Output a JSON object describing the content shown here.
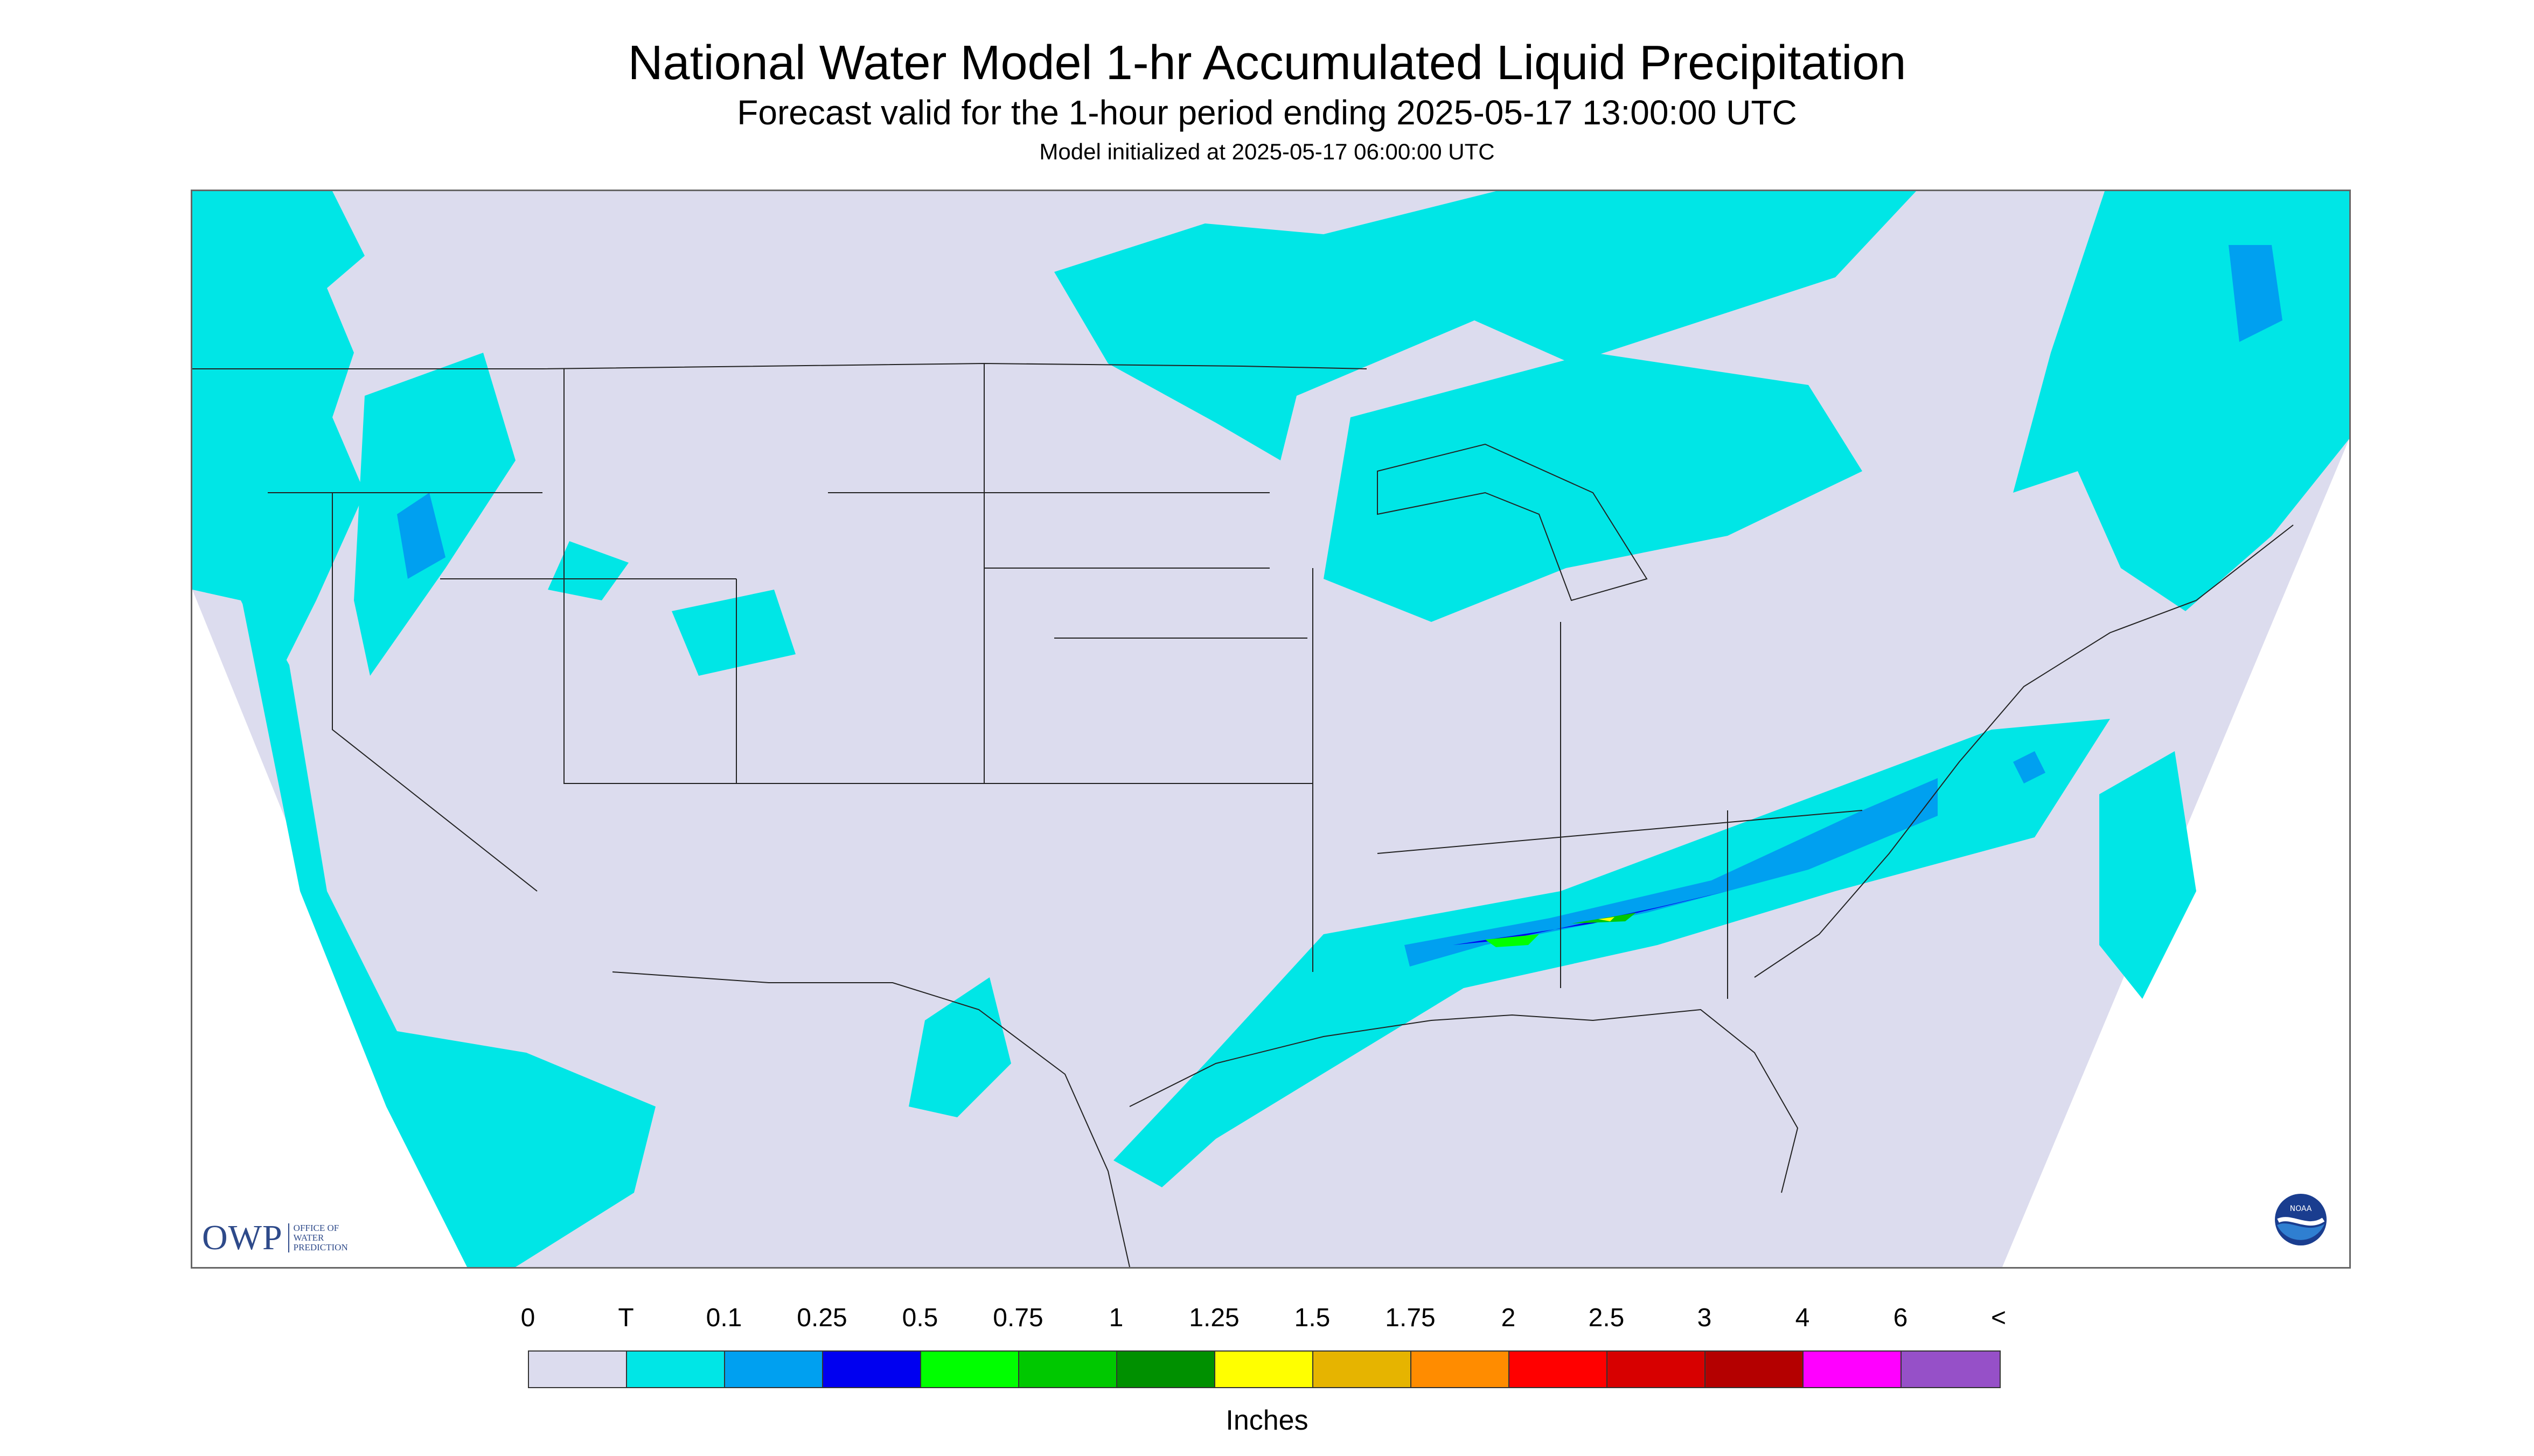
{
  "title": "National Water Model 1-hr Accumulated Liquid Precipitation",
  "subtitle": "Forecast valid for the 1-hour period ending 2025-05-17 13:00:00 UTC",
  "init_note": "Model initialized at 2025-05-17 06:00:00 UTC",
  "logos": {
    "owp": "OWP",
    "owp_lines": [
      "OFFICE OF",
      "WATER",
      "PREDICTION"
    ],
    "noaa": "NOAA"
  },
  "legend": {
    "labels": [
      "0",
      "T",
      "0.1",
      "0.25",
      "0.5",
      "0.75",
      "1",
      "1.25",
      "1.5",
      "1.75",
      "2",
      "2.5",
      "3",
      "4",
      "6",
      "<"
    ],
    "colors": [
      "#dcdcee",
      "#00e6e6",
      "#00a0f0",
      "#0000f0",
      "#00ff00",
      "#00c800",
      "#009000",
      "#ffff00",
      "#e6b400",
      "#ff8c00",
      "#ff0000",
      "#d70000",
      "#b40000",
      "#ff00ff",
      "#9650c8"
    ],
    "units": "Inches"
  },
  "map_colors": {
    "domain": "#dcdcee",
    "outside": "#ffffff",
    "boundary": "#222222"
  }
}
